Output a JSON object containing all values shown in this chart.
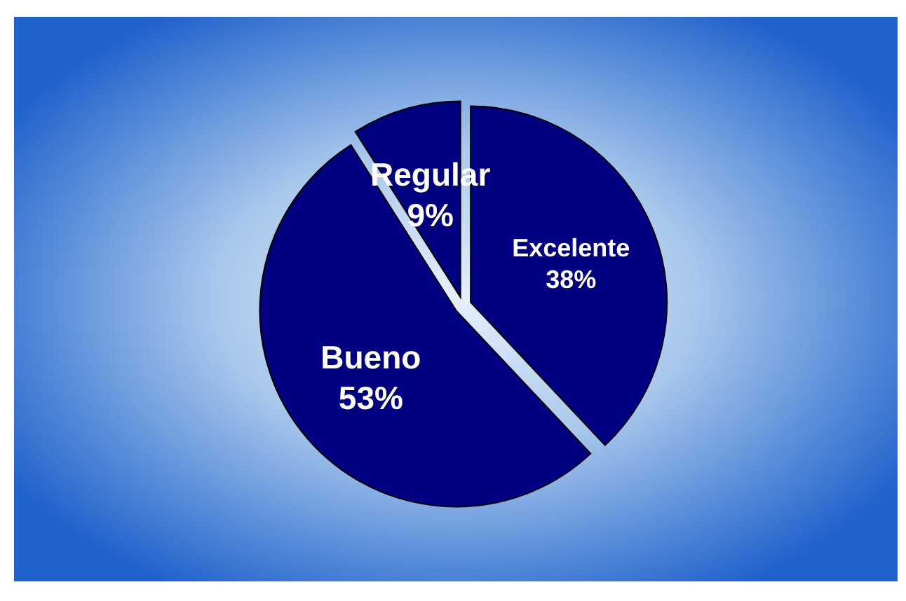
{
  "chart_data": {
    "type": "pie",
    "categories": [
      "Excelente",
      "Bueno",
      "Regular"
    ],
    "values": [
      38,
      53,
      9
    ],
    "colors": [
      "#000080",
      "#000080",
      "#000080"
    ],
    "value_labels": [
      "38%",
      "53%",
      "9%"
    ]
  }
}
